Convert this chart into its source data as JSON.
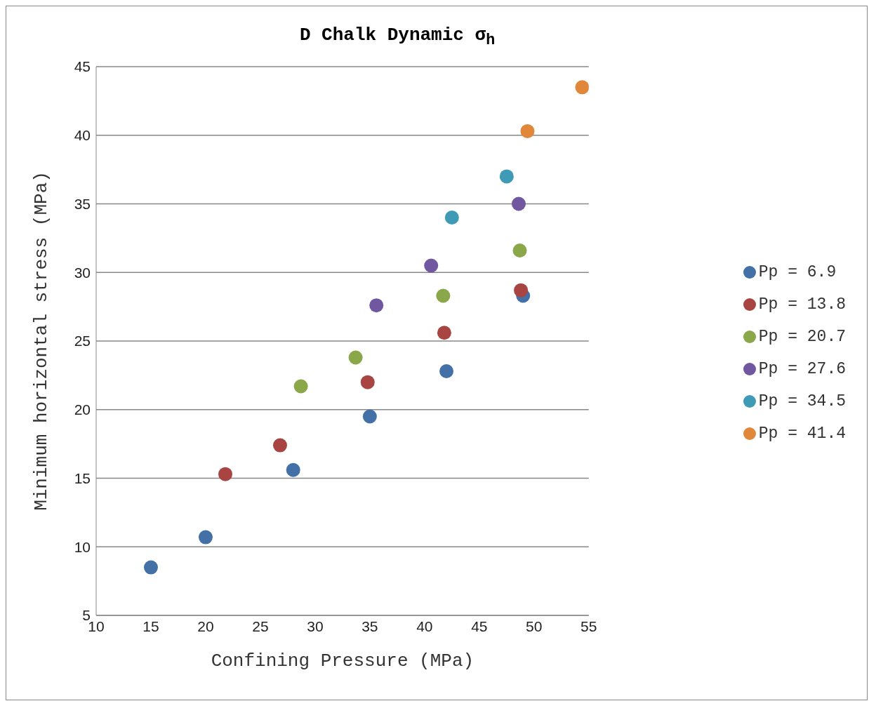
{
  "chart_data": {
    "type": "scatter",
    "title": "D Chalk Dynamic σ$_{h}$",
    "xlabel": "Confining Pressure (MPa)",
    "ylabel": "Minimum horizontal stress (MPa)",
    "xlim": [
      10,
      55
    ],
    "xticks": [
      10,
      15,
      20,
      25,
      30,
      35,
      40,
      45,
      50,
      55
    ],
    "ylim": [
      5,
      45
    ],
    "yticks": [
      5,
      10,
      15,
      20,
      25,
      30,
      35,
      40,
      45
    ],
    "grid": "y",
    "legend": "right",
    "marker": "circle",
    "series": [
      {
        "name": "Pp = 6.9",
        "color": "#4470a8",
        "x": [
          15,
          20,
          28,
          35,
          42,
          49
        ],
        "values": [
          8.5,
          10.7,
          15.6,
          19.5,
          22.8,
          28.3
        ]
      },
      {
        "name": "Pp = 13.8",
        "color": "#a84442",
        "x": [
          21.8,
          26.8,
          34.8,
          41.8,
          48.8
        ],
        "values": [
          15.3,
          17.4,
          22.0,
          25.6,
          28.7
        ]
      },
      {
        "name": "Pp = 20.7",
        "color": "#8aa84a",
        "x": [
          28.7,
          33.7,
          41.7,
          48.7
        ],
        "values": [
          21.7,
          23.8,
          28.3,
          31.6
        ]
      },
      {
        "name": "Pp = 27.6",
        "color": "#7156a0",
        "x": [
          35.6,
          40.6,
          48.6
        ],
        "values": [
          27.6,
          30.5,
          35.0
        ]
      },
      {
        "name": "Pp = 34.5",
        "color": "#3f9bb5",
        "x": [
          42.5,
          47.5
        ],
        "values": [
          34.0,
          37.0
        ]
      },
      {
        "name": "Pp = 41.4",
        "color": "#e0873a",
        "x": [
          49.4,
          54.4
        ],
        "values": [
          40.3,
          43.5
        ]
      }
    ]
  }
}
